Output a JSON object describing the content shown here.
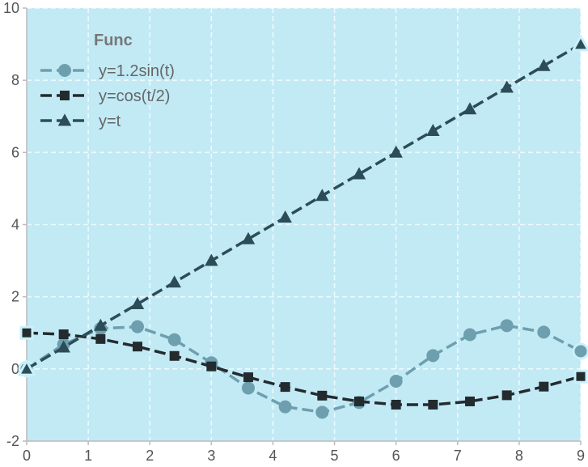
{
  "chart_data": {
    "type": "line",
    "title": "",
    "xlabel": "",
    "ylabel": "",
    "xlim": [
      0,
      9
    ],
    "ylim": [
      -2,
      10
    ],
    "x_ticks": [
      0,
      1,
      2,
      3,
      4,
      5,
      6,
      7,
      8,
      9
    ],
    "y_ticks": [
      -2,
      0,
      2,
      4,
      6,
      8,
      10
    ],
    "grid": true,
    "grid_style": "dashed",
    "legend_placement": "top-left",
    "background_color": "#c2eaf5",
    "legend": {
      "title": "Func"
    },
    "x": [
      0,
      0.6,
      1.2,
      1.8,
      2.4,
      3.0,
      3.6,
      4.2,
      4.8,
      5.4,
      6.0,
      6.6,
      7.2,
      7.8,
      8.4,
      9.0
    ],
    "series": [
      {
        "name": "y=1.2sin(t)",
        "marker": "circle",
        "color": "#6e9fae",
        "values": [
          0,
          0.68,
          1.12,
          1.17,
          0.81,
          0.17,
          -0.53,
          -1.05,
          -1.2,
          -0.93,
          -0.34,
          0.37,
          0.95,
          1.2,
          1.02,
          0.49
        ]
      },
      {
        "name": "y=cos(t/2)",
        "marker": "square",
        "color": "#232b2e",
        "values": [
          1.0,
          0.96,
          0.83,
          0.62,
          0.36,
          0.07,
          -0.23,
          -0.5,
          -0.74,
          -0.9,
          -0.99,
          -0.99,
          -0.9,
          -0.73,
          -0.49,
          -0.21
        ]
      },
      {
        "name": "y=t",
        "marker": "triangle",
        "color": "#2c4d57",
        "values": [
          0,
          0.6,
          1.2,
          1.8,
          2.4,
          3.0,
          3.6,
          4.2,
          4.8,
          5.4,
          6.0,
          6.6,
          7.2,
          7.8,
          8.4,
          9.0
        ]
      }
    ]
  }
}
